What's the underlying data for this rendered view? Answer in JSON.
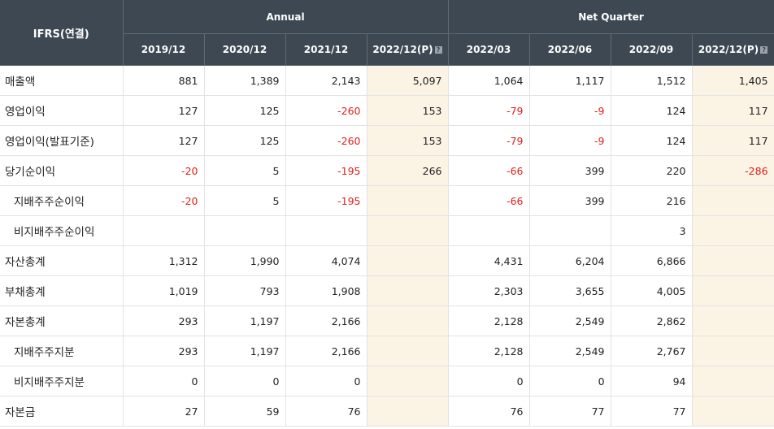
{
  "header": {
    "corner": "IFRS(연결)",
    "group_annual": "Annual",
    "group_quarter": "Net Quarter",
    "annual_columns": [
      "2019/12",
      "2020/12",
      "2021/12",
      "2022/12(P)"
    ],
    "quarter_columns": [
      "2022/03",
      "2022/06",
      "2022/09",
      "2022/12(P)"
    ],
    "help_icon_glyph": "?"
  },
  "rows": [
    {
      "label": "매출액",
      "sub": false,
      "values": [
        "881",
        "1,389",
        "2,143",
        "5,097",
        "1,064",
        "1,117",
        "1,512",
        "1,405"
      ]
    },
    {
      "label": "영업이익",
      "sub": false,
      "values": [
        "127",
        "125",
        "-260",
        "153",
        "-79",
        "-9",
        "124",
        "117"
      ]
    },
    {
      "label": "영업이익(발표기준)",
      "sub": false,
      "values": [
        "127",
        "125",
        "-260",
        "153",
        "-79",
        "-9",
        "124",
        "117"
      ]
    },
    {
      "label": "당기순이익",
      "sub": false,
      "values": [
        "-20",
        "5",
        "-195",
        "266",
        "-66",
        "399",
        "220",
        "-286"
      ]
    },
    {
      "label": "지배주주순이익",
      "sub": true,
      "values": [
        "-20",
        "5",
        "-195",
        "",
        "-66",
        "399",
        "216",
        ""
      ]
    },
    {
      "label": "비지배주주순이익",
      "sub": true,
      "values": [
        "",
        "",
        "",
        "",
        "",
        "",
        "3",
        ""
      ]
    },
    {
      "label": "자산총계",
      "sub": false,
      "values": [
        "1,312",
        "1,990",
        "4,074",
        "",
        "4,431",
        "6,204",
        "6,866",
        ""
      ]
    },
    {
      "label": "부채총계",
      "sub": false,
      "values": [
        "1,019",
        "793",
        "1,908",
        "",
        "2,303",
        "3,655",
        "4,005",
        ""
      ]
    },
    {
      "label": "자본총계",
      "sub": false,
      "values": [
        "293",
        "1,197",
        "2,166",
        "",
        "2,128",
        "2,549",
        "2,862",
        ""
      ]
    },
    {
      "label": "지배주주지분",
      "sub": true,
      "values": [
        "293",
        "1,197",
        "2,166",
        "",
        "2,128",
        "2,549",
        "2,767",
        ""
      ]
    },
    {
      "label": "비지배주주지분",
      "sub": true,
      "values": [
        "0",
        "0",
        "0",
        "",
        "0",
        "0",
        "94",
        ""
      ]
    },
    {
      "label": "자본금",
      "sub": false,
      "values": [
        "27",
        "59",
        "76",
        "",
        "76",
        "77",
        "77",
        ""
      ]
    }
  ],
  "colors": {
    "header_bg": "#3d4852",
    "projection_bg": "#fbf3e4",
    "negative": "#e0201b"
  }
}
